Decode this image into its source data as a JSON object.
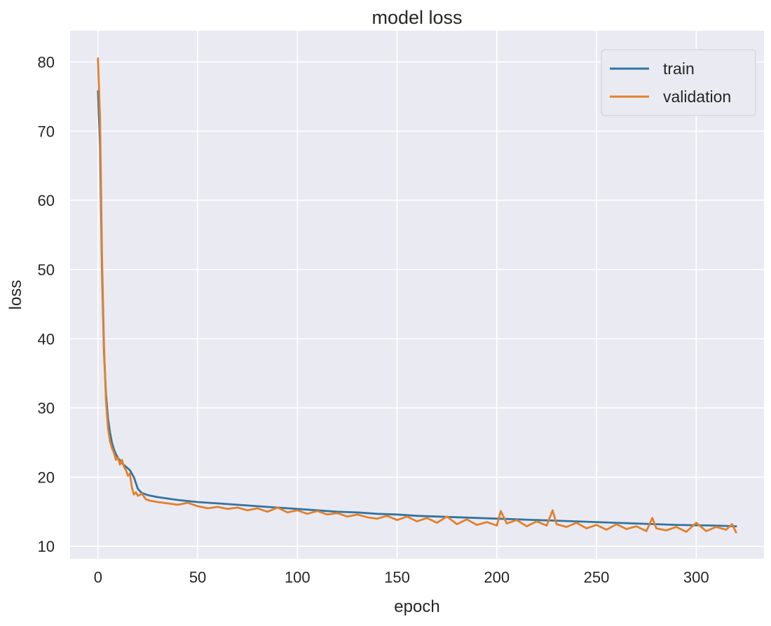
{
  "chart_data": {
    "type": "line",
    "title": "model loss",
    "xlabel": "epoch",
    "ylabel": "loss",
    "xlim": [
      -14,
      334
    ],
    "ylim": [
      8.2,
      84.5
    ],
    "xticks": [
      0,
      50,
      100,
      150,
      200,
      250,
      300
    ],
    "yticks": [
      10,
      20,
      30,
      40,
      50,
      60,
      70,
      80
    ],
    "grid": true,
    "legend_position": "upper right",
    "background_color": "#EAEAF2",
    "grid_color": "#FFFFFF",
    "series": [
      {
        "name": "train",
        "color": "#3274A1",
        "x": [
          0,
          1,
          2,
          3,
          4,
          5,
          6,
          7,
          8,
          9,
          10,
          12,
          14,
          16,
          18,
          20,
          22,
          25,
          30,
          35,
          40,
          50,
          60,
          70,
          80,
          90,
          100,
          110,
          120,
          130,
          140,
          150,
          160,
          170,
          180,
          190,
          200,
          210,
          220,
          230,
          240,
          250,
          260,
          270,
          280,
          290,
          300,
          310,
          320
        ],
        "y": [
          75.8,
          68.0,
          50.0,
          38.0,
          32.0,
          28.5,
          26.5,
          25.0,
          24.0,
          23.3,
          22.8,
          22.0,
          21.5,
          21.0,
          20.0,
          18.3,
          17.7,
          17.4,
          17.1,
          16.9,
          16.7,
          16.4,
          16.2,
          16.0,
          15.8,
          15.6,
          15.4,
          15.2,
          15.0,
          14.9,
          14.7,
          14.6,
          14.4,
          14.3,
          14.2,
          14.1,
          14.0,
          13.9,
          13.8,
          13.7,
          13.6,
          13.5,
          13.4,
          13.3,
          13.2,
          13.1,
          13.05,
          13.0,
          12.9
        ]
      },
      {
        "name": "validation",
        "color": "#E1812C",
        "x": [
          0,
          1,
          2,
          3,
          4,
          5,
          6,
          7,
          8,
          9,
          10,
          11,
          12,
          13,
          14,
          15,
          16,
          17,
          18,
          19,
          20,
          22,
          24,
          26,
          30,
          35,
          40,
          45,
          50,
          55,
          60,
          65,
          70,
          75,
          80,
          85,
          90,
          95,
          100,
          105,
          110,
          115,
          120,
          125,
          130,
          135,
          140,
          145,
          150,
          155,
          160,
          165,
          170,
          175,
          180,
          185,
          190,
          195,
          200,
          202,
          205,
          210,
          215,
          220,
          225,
          228,
          230,
          235,
          240,
          245,
          250,
          255,
          260,
          265,
          270,
          275,
          278,
          280,
          285,
          290,
          295,
          300,
          305,
          310,
          315,
          318,
          320
        ],
        "y": [
          80.5,
          72.0,
          52.0,
          39.0,
          31.0,
          27.0,
          25.2,
          24.2,
          23.5,
          22.5,
          22.8,
          21.8,
          22.5,
          21.5,
          21.0,
          20.2,
          20.5,
          18.5,
          17.5,
          17.8,
          17.3,
          17.6,
          16.8,
          16.6,
          16.4,
          16.2,
          16.0,
          16.3,
          15.8,
          15.5,
          15.7,
          15.4,
          15.6,
          15.2,
          15.5,
          15.0,
          15.6,
          14.9,
          15.2,
          14.7,
          15.1,
          14.6,
          14.8,
          14.3,
          14.6,
          14.2,
          14.0,
          14.4,
          13.8,
          14.3,
          13.6,
          14.1,
          13.4,
          14.3,
          13.2,
          13.9,
          13.1,
          13.5,
          13.0,
          15.1,
          13.3,
          13.8,
          12.9,
          13.6,
          13.0,
          15.2,
          13.2,
          12.8,
          13.4,
          12.6,
          13.1,
          12.4,
          13.2,
          12.5,
          12.9,
          12.2,
          14.1,
          12.6,
          12.3,
          12.8,
          12.1,
          13.4,
          12.2,
          12.8,
          12.4,
          13.2,
          12.0
        ]
      }
    ]
  }
}
